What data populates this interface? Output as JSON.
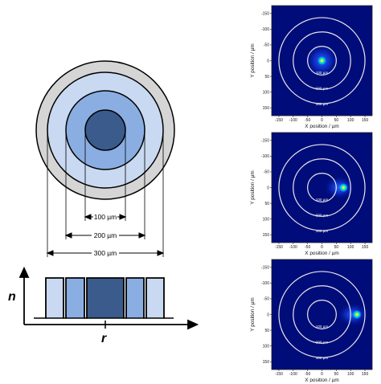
{
  "fiber_diagram": {
    "dimensions": [
      "100 µm",
      "200 µm",
      "300 µm"
    ],
    "profile_axis_y": "n",
    "profile_axis_x": "r",
    "colors": {
      "cladding": "#d5d5d5",
      "ring_outer": "#c9d9f1",
      "ring_inner": "#8aaee2",
      "core": "#3a5b8c",
      "outline": "#000000"
    }
  },
  "beam_plots": {
    "x_label": "X position / µm",
    "y_label": "Y position / µm",
    "x_ticks": [
      "-150",
      "-100",
      "-50",
      "0",
      "50",
      "100",
      "150"
    ],
    "y_ticks": [
      "-150",
      "-100",
      "-50",
      "0",
      "50",
      "100",
      "150"
    ],
    "circle_labels": [
      "100 µm",
      "200 µm",
      "300 µm"
    ],
    "circle_diameters_um": [
      100,
      200,
      300
    ],
    "background_color": "#000c7a",
    "panels": [
      {
        "spot_x_um": 0,
        "spot_y_um": 0
      },
      {
        "spot_x_um": 75,
        "spot_y_um": 0
      },
      {
        "spot_x_um": 122,
        "spot_y_um": 0
      }
    ]
  }
}
